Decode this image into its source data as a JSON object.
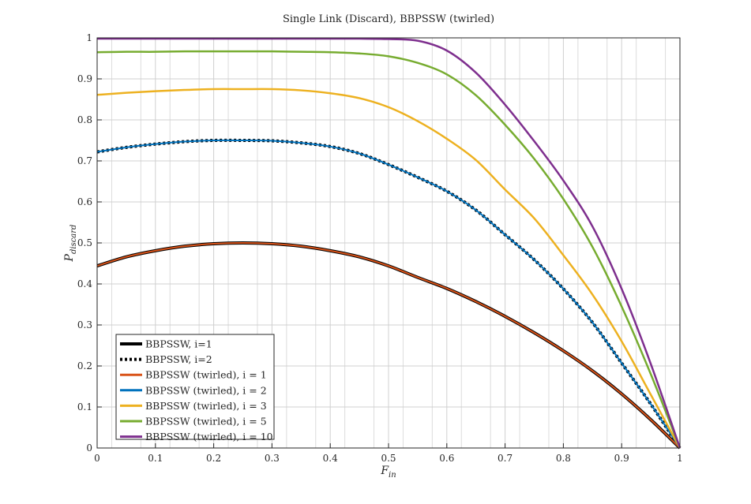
{
  "chart_data": {
    "type": "line",
    "title": "Single Link (Discard), BBPSSW (twirled)",
    "xlabel": "F",
    "xlabel_sub": "in",
    "ylabel": "P",
    "ylabel_sub": "discard",
    "xlim": [
      0,
      1
    ],
    "ylim": [
      0,
      1
    ],
    "grid": true,
    "minor_grid": true,
    "legend_position": "bottom-left",
    "xticks": [
      "0",
      "0.1",
      "0.2",
      "0.3",
      "0.4",
      "0.5",
      "0.6",
      "0.7",
      "0.8",
      "0.9",
      "1"
    ],
    "yticks": [
      "0",
      "0.1",
      "0.2",
      "0.3",
      "0.4",
      "0.5",
      "0.6",
      "0.7",
      "0.8",
      "0.9",
      "1"
    ],
    "x": [
      0,
      0.05,
      0.1,
      0.15,
      0.2,
      0.25,
      0.3,
      0.35,
      0.4,
      0.45,
      0.5,
      0.55,
      0.6,
      0.65,
      0.7,
      0.75,
      0.8,
      0.85,
      0.9,
      0.95,
      1
    ],
    "series": [
      {
        "name": "BBPSSW, i=1",
        "color": "#000000",
        "style": "solid",
        "width": 4,
        "values": [
          0.444,
          0.466,
          0.481,
          0.492,
          0.498,
          0.5,
          0.498,
          0.492,
          0.481,
          0.466,
          0.444,
          0.416,
          0.389,
          0.357,
          0.321,
          0.281,
          0.237,
          0.188,
          0.132,
          0.069,
          0.0
        ]
      },
      {
        "name": "BBPSSW, i=2",
        "color": "#000000",
        "style": "dotted",
        "width": 4,
        "values": [
          0.722,
          0.733,
          0.741,
          0.747,
          0.75,
          0.75,
          0.749,
          0.744,
          0.735,
          0.718,
          0.691,
          0.66,
          0.626,
          0.58,
          0.52,
          0.459,
          0.388,
          0.306,
          0.207,
          0.107,
          0.0
        ]
      },
      {
        "name": "BBPSSW (twirled), i = 1",
        "color": "#D95319",
        "style": "solid",
        "width": 2,
        "values": [
          0.444,
          0.466,
          0.481,
          0.492,
          0.498,
          0.5,
          0.498,
          0.492,
          0.481,
          0.466,
          0.444,
          0.416,
          0.389,
          0.357,
          0.321,
          0.281,
          0.237,
          0.188,
          0.132,
          0.069,
          0.0
        ]
      },
      {
        "name": "BBPSSW (twirled), i = 2",
        "color": "#0072BD",
        "style": "solid",
        "width": 2,
        "values": [
          0.722,
          0.733,
          0.741,
          0.747,
          0.75,
          0.75,
          0.749,
          0.744,
          0.735,
          0.718,
          0.691,
          0.66,
          0.626,
          0.58,
          0.52,
          0.459,
          0.388,
          0.306,
          0.207,
          0.107,
          0.0
        ]
      },
      {
        "name": "BBPSSW (twirled), i = 3",
        "color": "#EDB120",
        "style": "solid",
        "width": 2.5,
        "values": [
          0.861,
          0.866,
          0.87,
          0.873,
          0.875,
          0.875,
          0.875,
          0.872,
          0.865,
          0.853,
          0.831,
          0.797,
          0.754,
          0.702,
          0.63,
          0.56,
          0.47,
          0.374,
          0.26,
          0.13,
          0.0
        ]
      },
      {
        "name": "BBPSSW (twirled), i = 5",
        "color": "#77AC30",
        "style": "solid",
        "width": 2.5,
        "values": [
          0.965,
          0.966,
          0.966,
          0.967,
          0.967,
          0.967,
          0.967,
          0.966,
          0.965,
          0.962,
          0.955,
          0.939,
          0.911,
          0.86,
          0.788,
          0.705,
          0.607,
          0.49,
          0.345,
          0.18,
          0.0
        ]
      },
      {
        "name": "BBPSSW (twirled), i = 10",
        "color": "#7E2F8E",
        "style": "solid",
        "width": 2.5,
        "values": [
          0.998,
          0.998,
          0.998,
          0.998,
          0.998,
          0.998,
          0.998,
          0.998,
          0.998,
          0.998,
          0.997,
          0.993,
          0.969,
          0.915,
          0.837,
          0.748,
          0.652,
          0.54,
          0.388,
          0.205,
          0.0
        ]
      }
    ]
  }
}
